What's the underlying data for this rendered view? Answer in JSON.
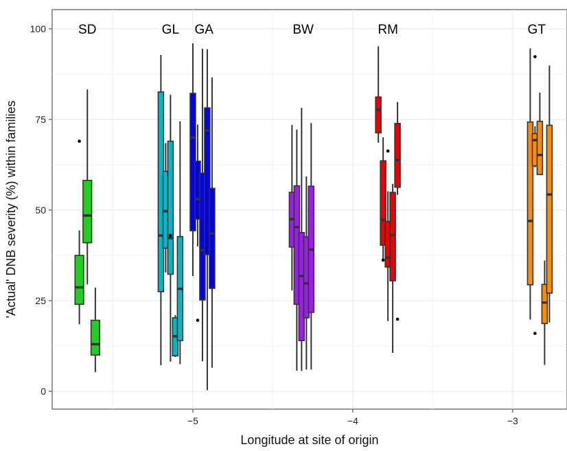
{
  "chart_data": {
    "type": "box",
    "xlabel": "Longitude at site of origin",
    "ylabel": "'Actual' DNB severity (%) within families",
    "xlim": [
      -5.88,
      -2.66
    ],
    "ylim": [
      -4.9,
      105.3
    ],
    "x_ticks": [
      -5,
      -4,
      -3
    ],
    "x_tick_labels": [
      "−5",
      "−4",
      "−3"
    ],
    "y_ticks": [
      0,
      25,
      50,
      75,
      100
    ],
    "y_tick_labels": [
      "0",
      "25",
      "50",
      "75",
      "100"
    ],
    "grid": true,
    "group_labels": [
      {
        "text": "SD",
        "x": -5.66,
        "y": 100
      },
      {
        "text": "GL",
        "x": -5.14,
        "y": 100
      },
      {
        "text": "GA",
        "x": -4.93,
        "y": 100
      },
      {
        "text": "BW",
        "x": -4.31,
        "y": 100
      },
      {
        "text": "RM",
        "x": -3.78,
        "y": 100
      },
      {
        "text": "GT",
        "x": -2.85,
        "y": 100
      }
    ],
    "colors": {
      "SD": "#22cc22",
      "GL": "#00b8c8",
      "GA": "#0000ee",
      "BW": "#9b1fe8",
      "RM": "#ee0000",
      "GT": "#ff8c00"
    },
    "series": [
      {
        "group": "SD",
        "boxes": [
          {
            "x": -5.71,
            "w": 0.054,
            "whisker_low": 18.5,
            "q1": 24,
            "median": 28.7,
            "q3": 37.5,
            "whisker_high": 44.4,
            "outliers": [
              69
            ]
          },
          {
            "x": -5.66,
            "w": 0.054,
            "whisker_low": 29.5,
            "q1": 41,
            "median": 48.5,
            "q3": 58.2,
            "whisker_high": 83.3,
            "outliers": []
          },
          {
            "x": -5.61,
            "w": 0.054,
            "whisker_low": 5.3,
            "q1": 10,
            "median": 13,
            "q3": 19.6,
            "whisker_high": 28.6,
            "outliers": []
          }
        ]
      },
      {
        "group": "GL",
        "boxes": [
          {
            "x": -5.2,
            "w": 0.034,
            "whisker_low": 7.2,
            "q1": 27.5,
            "median": 43,
            "q3": 82.6,
            "whisker_high": 92.8,
            "outliers": []
          },
          {
            "x": -5.17,
            "w": 0.034,
            "whisker_low": 32.8,
            "q1": 39.5,
            "median": 49.7,
            "q3": 60.7,
            "whisker_high": 68.5,
            "outliers": []
          },
          {
            "x": -5.14,
            "w": 0.034,
            "whisker_low": 8.2,
            "q1": 32.3,
            "median": 42.3,
            "q3": 69,
            "whisker_high": 81.8,
            "outliers": [
              43
            ]
          },
          {
            "x": -5.11,
            "w": 0.034,
            "whisker_low": 9.5,
            "q1": 9.8,
            "median": 15.2,
            "q3": 20.3,
            "whisker_high": 21,
            "outliers": []
          },
          {
            "x": -5.08,
            "w": 0.034,
            "whisker_low": 7.5,
            "q1": 14,
            "median": 28.3,
            "q3": 42.7,
            "whisker_high": 74.5,
            "outliers": []
          }
        ]
      },
      {
        "group": "GA",
        "boxes": [
          {
            "x": -5.0,
            "w": 0.034,
            "whisker_low": 31.8,
            "q1": 44.3,
            "median": 70,
            "q3": 82.2,
            "whisker_high": 96,
            "outliers": []
          },
          {
            "x": -4.97,
            "w": 0.034,
            "whisker_low": 40,
            "q1": 47.5,
            "median": 53,
            "q3": 63.5,
            "whisker_high": 73.6,
            "outliers": [
              19.6
            ]
          },
          {
            "x": -4.94,
            "w": 0.034,
            "whisker_low": 8.3,
            "q1": 25.2,
            "median": 38.9,
            "q3": 60.2,
            "whisker_high": 94.5,
            "outliers": []
          },
          {
            "x": -4.91,
            "w": 0.034,
            "whisker_low": 0.3,
            "q1": 37.7,
            "median": 72,
            "q3": 78.2,
            "whisker_high": 94.4,
            "outliers": []
          },
          {
            "x": -4.88,
            "w": 0.034,
            "whisker_low": 6.5,
            "q1": 28.4,
            "median": 43.5,
            "q3": 56,
            "whisker_high": 86.6,
            "outliers": []
          }
        ]
      },
      {
        "group": "BW",
        "boxes": [
          {
            "x": -4.38,
            "w": 0.034,
            "whisker_low": 27.8,
            "q1": 39.8,
            "median": 47.5,
            "q3": 54.9,
            "whisker_high": 73.5,
            "outliers": []
          },
          {
            "x": -4.35,
            "w": 0.034,
            "whisker_low": 5.7,
            "q1": 24,
            "median": 45.3,
            "q3": 56.7,
            "whisker_high": 72.2,
            "outliers": []
          },
          {
            "x": -4.32,
            "w": 0.034,
            "whisker_low": 5.6,
            "q1": 14,
            "median": 31.8,
            "q3": 43.8,
            "whisker_high": 78.2,
            "outliers": []
          },
          {
            "x": -4.29,
            "w": 0.034,
            "whisker_low": 6,
            "q1": 20.3,
            "median": 29.8,
            "q3": 42.6,
            "whisker_high": 59.3,
            "outliers": []
          },
          {
            "x": -4.26,
            "w": 0.034,
            "whisker_low": 6,
            "q1": 21.8,
            "median": 39.1,
            "q3": 56.6,
            "whisker_high": 74,
            "outliers": []
          }
        ]
      },
      {
        "group": "RM",
        "boxes": [
          {
            "x": -3.84,
            "w": 0.034,
            "whisker_low": 68.6,
            "q1": 71.3,
            "median": 77.7,
            "q3": 81.2,
            "whisker_high": 95.2,
            "outliers": []
          },
          {
            "x": -3.81,
            "w": 0.034,
            "whisker_low": 36.5,
            "q1": 40.3,
            "median": 47.3,
            "q3": 63.6,
            "whisker_high": 70.1,
            "outliers": [
              36.2
            ]
          },
          {
            "x": -3.78,
            "w": 0.034,
            "whisker_low": 19.4,
            "q1": 34.3,
            "median": 36.9,
            "q3": 46.9,
            "whisker_high": 55.2,
            "outliers": [
              66.3
            ]
          },
          {
            "x": -3.75,
            "w": 0.034,
            "whisker_low": 10.6,
            "q1": 30.5,
            "median": 43.1,
            "q3": 54.9,
            "whisker_high": 57.2,
            "outliers": []
          },
          {
            "x": -3.72,
            "w": 0.034,
            "whisker_low": 54.2,
            "q1": 56.3,
            "median": 63.8,
            "q3": 73.9,
            "whisker_high": 79.8,
            "outliers": [
              19.9
            ]
          }
        ]
      },
      {
        "group": "GT",
        "boxes": [
          {
            "x": -2.89,
            "w": 0.034,
            "whisker_low": 19.8,
            "q1": 29.4,
            "median": 47,
            "q3": 74.3,
            "whisker_high": 94.6,
            "outliers": []
          },
          {
            "x": -2.86,
            "w": 0.034,
            "whisker_low": 61.8,
            "q1": 62.2,
            "median": 69.3,
            "q3": 71.1,
            "whisker_high": 73.1,
            "outliers": [
              92.3,
              16
            ]
          },
          {
            "x": -2.83,
            "w": 0.034,
            "whisker_low": 59.7,
            "q1": 59.8,
            "median": 65.2,
            "q3": 74.5,
            "whisker_high": 82.4,
            "outliers": []
          },
          {
            "x": -2.8,
            "w": 0.034,
            "whisker_low": 7.3,
            "q1": 18.7,
            "median": 24.5,
            "q3": 29.5,
            "whisker_high": 36.1,
            "outliers": []
          },
          {
            "x": -2.77,
            "w": 0.034,
            "whisker_low": 19,
            "q1": 27.1,
            "median": 54.3,
            "q3": 73.4,
            "whisker_high": 89.9,
            "outliers": []
          }
        ]
      }
    ]
  }
}
